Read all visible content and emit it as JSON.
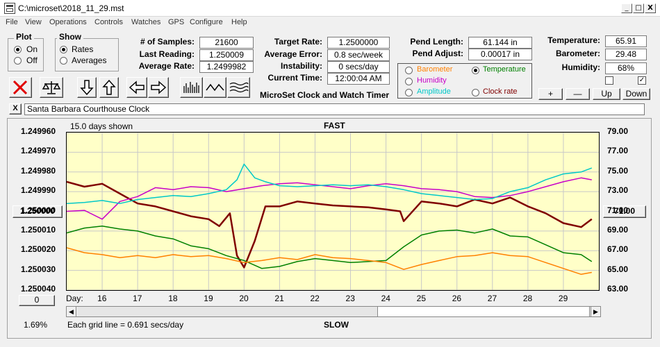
{
  "window": {
    "title": "C:\\microset\\2018_11_29.mst",
    "minimize": "_",
    "maximize": "□",
    "close": "X"
  },
  "menu": [
    "File",
    "View",
    "Operations",
    "Controls",
    "Watches",
    "GPS",
    "Configure",
    "Help"
  ],
  "plot_group": {
    "title": "Plot",
    "on_label": "On",
    "off_label": "Off",
    "selected": "On"
  },
  "show_group": {
    "title": "Show",
    "rates_label": "Rates",
    "averages_label": "Averages",
    "selected": "Rates"
  },
  "stats": {
    "samples_label": "# of Samples:",
    "samples": "21600",
    "last_reading_label": "Last Reading:",
    "last_reading": "1.250009",
    "average_rate_label": "Average Rate:",
    "average_rate": "1.2499982"
  },
  "targets": {
    "target_rate_label": "Target Rate:",
    "target_rate": "1.2500000",
    "average_error_label": "Average Error:",
    "average_error": "0.8 sec/week",
    "instability_label": "Instability:",
    "instability": "0 secs/day",
    "current_time_label": "Current Time:",
    "current_time": "12:00:04 AM",
    "app_caption": "MicroSet Clock and Watch Timer"
  },
  "pendulum": {
    "length_label": "Pend Length:",
    "length": "61.144 in",
    "adjust_label": "Pend Adjust:",
    "adjust": "0.00017 in"
  },
  "sensor_options": {
    "barometer": "Barometer",
    "temperature": "Temperature",
    "humidity": "Humidity",
    "amplitude": "Amplitude",
    "clock_rate": "Clock rate",
    "selected": "Temperature",
    "colors": {
      "barometer": "#ff8000",
      "temperature": "#008000",
      "humidity": "#c800c8",
      "amplitude": "#00c8c8",
      "clock_rate": "#800000"
    }
  },
  "environment": {
    "temperature_label": "Temperature:",
    "temperature": "65.91",
    "barometer_label": "Barometer:",
    "barometer": "29.48",
    "humidity_label": "Humidity:",
    "humidity": "68%",
    "check1": false,
    "check2": true,
    "plus": "+",
    "minus": "—",
    "up": "Up",
    "down": "Down"
  },
  "toolbar_icons": [
    "clear-x-icon",
    "balance-scale-icon",
    "arrow-down-icon",
    "arrow-up-icon",
    "arrow-left-icon",
    "arrow-right-icon",
    "bar-chart-icon",
    "wave-icon",
    "multi-wave-icon"
  ],
  "clock_name": {
    "close": "X",
    "value": "Santa Barbara Courthouse Clock"
  },
  "chart_header": {
    "days_shown": "15.0 days shown",
    "fast": "FAST",
    "slow": "SLOW",
    "grid_note": "Each grid line = 0.691 secs/day",
    "percent": "1.69%",
    "day_label": "Day:",
    "left_button": "1.250000",
    "right_button": "71.00",
    "bottom_left_button": "0"
  },
  "chart_data": {
    "type": "line",
    "y_left_ticks": [
      "1.249960",
      "1.249970",
      "1.249980",
      "1.249990",
      "1.250000",
      "1.250010",
      "1.250020",
      "1.250030",
      "1.250040"
    ],
    "y_right_ticks": [
      "79.00",
      "77.00",
      "75.00",
      "73.00",
      "71.00",
      "69.00",
      "67.00",
      "65.00",
      "63.00"
    ],
    "x_ticks": [
      "16",
      "17",
      "18",
      "19",
      "20",
      "21",
      "22",
      "23",
      "24",
      "25",
      "26",
      "27",
      "28",
      "29"
    ],
    "xlim": [
      15.0,
      30.0
    ],
    "ylim_right": [
      63,
      79
    ],
    "series": [
      {
        "name": "Clock rate",
        "color": "#800000",
        "x": [
          15.0,
          15.5,
          16.0,
          16.5,
          17.0,
          17.5,
          18.0,
          18.5,
          19.0,
          19.3,
          19.6,
          19.8,
          20.0,
          20.3,
          20.6,
          21.0,
          21.5,
          22.0,
          22.5,
          23.0,
          23.5,
          24.0,
          24.4,
          24.5,
          25.0,
          25.5,
          26.0,
          26.5,
          27.0,
          27.5,
          28.0,
          28.5,
          29.0,
          29.5,
          29.8
        ],
        "y": [
          74.0,
          73.5,
          73.8,
          72.8,
          71.8,
          71.5,
          71.0,
          70.5,
          70.2,
          69.5,
          70.8,
          66.5,
          65.3,
          68.0,
          71.5,
          71.5,
          72.0,
          71.8,
          71.6,
          71.5,
          71.4,
          71.2,
          71.0,
          70.0,
          72.0,
          71.8,
          71.5,
          72.2,
          71.8,
          72.4,
          71.5,
          70.8,
          69.8,
          69.4,
          70.2
        ]
      },
      {
        "name": "Temperature",
        "color": "#008000",
        "x": [
          15.0,
          15.5,
          16.0,
          16.5,
          17.0,
          17.5,
          18.0,
          18.5,
          19.0,
          19.5,
          20.0,
          20.5,
          21.0,
          21.5,
          22.0,
          22.5,
          23.0,
          23.5,
          24.0,
          24.5,
          25.0,
          25.5,
          26.0,
          26.5,
          27.0,
          27.5,
          28.0,
          28.5,
          29.0,
          29.5,
          29.8
        ],
        "y": [
          68.8,
          69.3,
          69.5,
          69.2,
          69.0,
          68.5,
          68.2,
          67.5,
          67.2,
          66.5,
          66.0,
          65.2,
          65.4,
          65.9,
          66.2,
          66.0,
          65.8,
          65.9,
          66.0,
          67.4,
          68.6,
          69.0,
          69.1,
          68.8,
          69.2,
          68.5,
          68.4,
          67.6,
          66.8,
          66.6,
          65.9
        ]
      },
      {
        "name": "Humidity",
        "color": "#c800c8",
        "x": [
          15.0,
          15.5,
          16.0,
          16.5,
          17.0,
          17.5,
          18.0,
          18.5,
          19.0,
          19.5,
          20.0,
          20.5,
          21.0,
          21.5,
          22.0,
          22.5,
          23.0,
          23.5,
          24.0,
          24.5,
          25.0,
          25.5,
          26.0,
          26.5,
          27.0,
          27.5,
          28.0,
          28.5,
          29.0,
          29.5,
          29.8
        ],
        "y": [
          71.0,
          71.1,
          70.2,
          72.0,
          72.5,
          73.4,
          73.2,
          73.5,
          73.4,
          73.0,
          73.3,
          73.6,
          73.8,
          73.9,
          73.7,
          73.5,
          73.3,
          73.6,
          73.8,
          73.6,
          73.3,
          73.2,
          73.0,
          72.5,
          72.4,
          72.6,
          73.0,
          73.5,
          74.0,
          74.4,
          74.2
        ]
      },
      {
        "name": "Amplitude",
        "color": "#00c8c8",
        "x": [
          15.0,
          15.5,
          16.0,
          16.5,
          17.0,
          17.5,
          18.0,
          18.5,
          19.0,
          19.5,
          19.8,
          20.0,
          20.3,
          20.6,
          21.0,
          21.5,
          22.0,
          22.5,
          23.0,
          23.5,
          24.0,
          24.5,
          25.0,
          25.5,
          26.0,
          26.5,
          27.0,
          27.5,
          28.0,
          28.5,
          29.0,
          29.5,
          29.8
        ],
        "y": [
          71.8,
          71.9,
          72.1,
          71.8,
          72.2,
          72.4,
          72.6,
          72.5,
          72.8,
          73.2,
          74.2,
          75.8,
          74.4,
          74.0,
          73.6,
          73.5,
          73.6,
          73.7,
          73.6,
          73.7,
          73.5,
          73.2,
          72.8,
          72.6,
          72.4,
          72.2,
          72.3,
          73.0,
          73.4,
          74.2,
          74.8,
          75.0,
          75.4
        ]
      },
      {
        "name": "Barometer",
        "color": "#ff8000",
        "x": [
          15.0,
          15.5,
          16.0,
          16.5,
          17.0,
          17.5,
          18.0,
          18.5,
          19.0,
          19.5,
          20.0,
          20.5,
          21.0,
          21.5,
          22.0,
          22.5,
          23.0,
          23.5,
          24.0,
          24.5,
          25.0,
          25.5,
          26.0,
          26.5,
          27.0,
          27.5,
          28.0,
          28.5,
          29.0,
          29.5,
          29.8
        ],
        "y": [
          67.3,
          66.8,
          66.6,
          66.3,
          66.5,
          66.3,
          66.6,
          66.4,
          66.5,
          66.2,
          65.8,
          66.0,
          66.3,
          66.1,
          66.6,
          66.3,
          66.2,
          66.0,
          65.8,
          65.1,
          65.6,
          66.0,
          66.4,
          66.5,
          66.8,
          66.5,
          66.4,
          65.8,
          65.2,
          64.6,
          64.8
        ]
      }
    ]
  }
}
